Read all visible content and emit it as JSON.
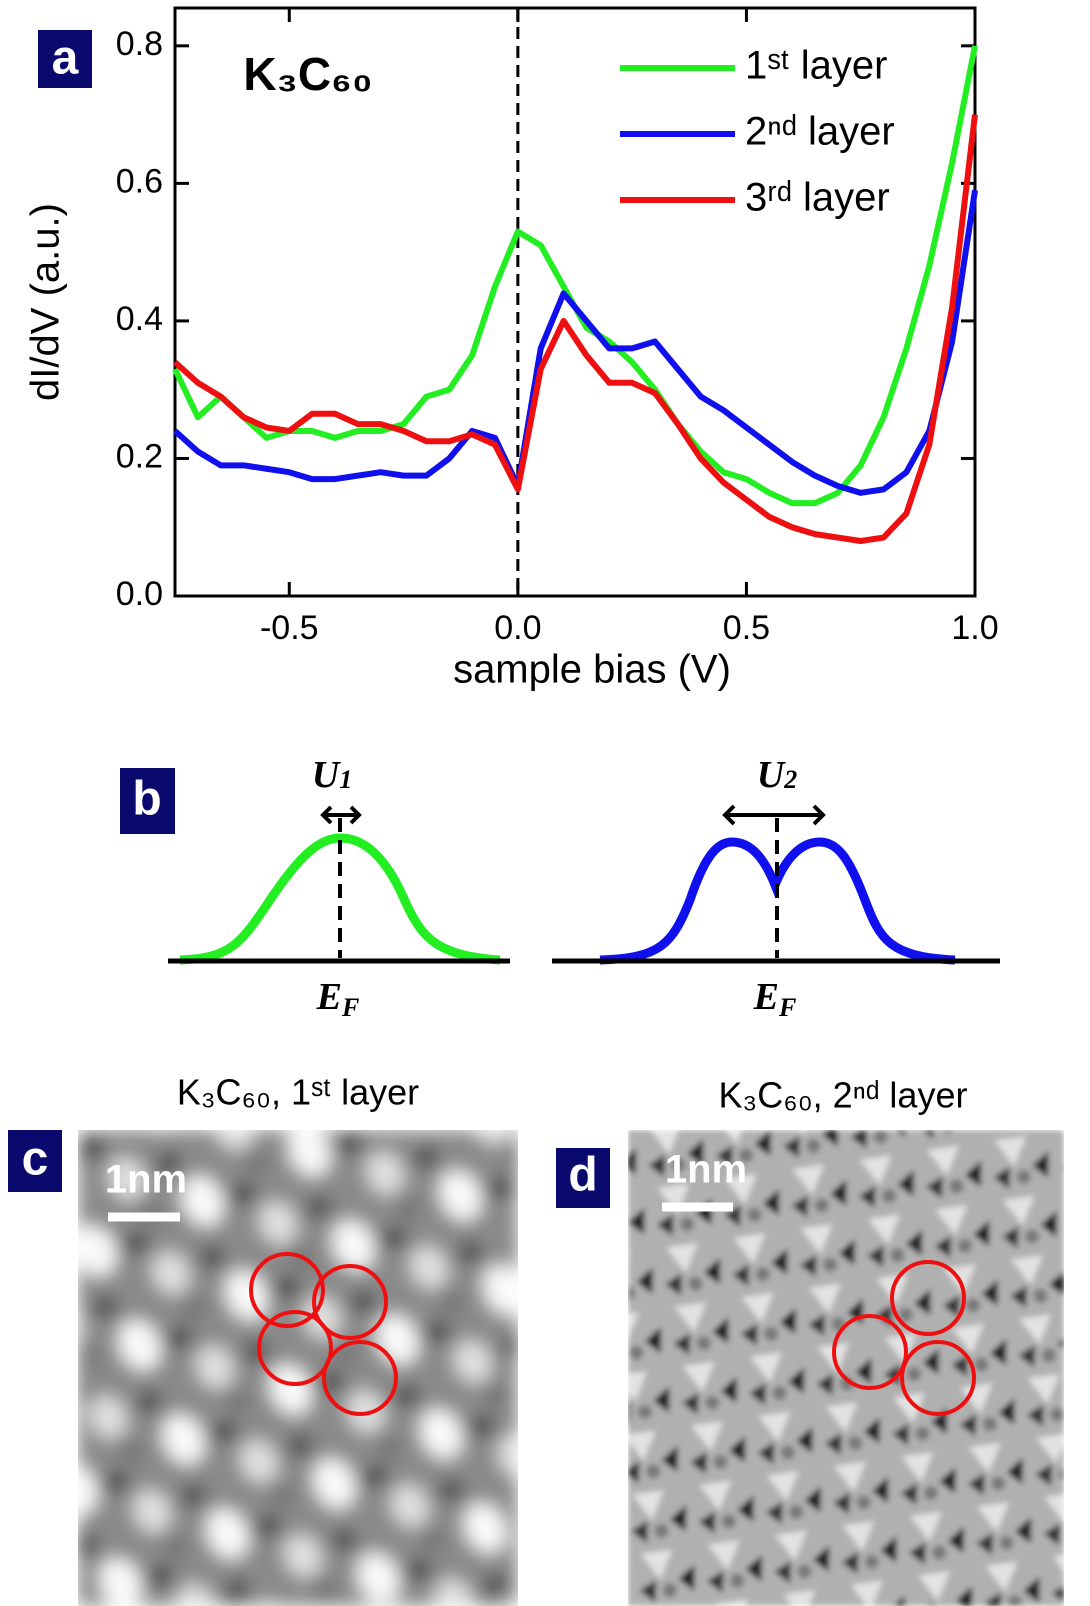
{
  "chart_data": {
    "type": "line",
    "title": "K₃C₆₀",
    "panel_label": "a",
    "xlabel": "sample bias (V)",
    "ylabel": "dI/dV (a.u.)",
    "xlim": [
      -0.75,
      1.0
    ],
    "ylim": [
      0,
      0.855
    ],
    "xticks": [
      -0.5,
      {
        "value": 0,
        "label": "0.0"
      },
      0.5,
      {
        "value": 1,
        "label": "1.0"
      }
    ],
    "yticks": [
      {
        "value": 0,
        "label": "0.0"
      },
      0.2,
      0.4,
      0.6,
      0.8
    ],
    "vline": 0,
    "legend": "upper right",
    "x": [
      -0.75,
      -0.7,
      -0.65,
      -0.6,
      -0.55,
      -0.5,
      -0.45,
      -0.4,
      -0.35,
      -0.3,
      -0.25,
      -0.2,
      -0.15,
      -0.1,
      -0.05,
      0,
      0.05,
      0.1,
      0.15,
      0.2,
      0.25,
      0.3,
      0.35,
      0.4,
      0.45,
      0.5,
      0.55,
      0.6,
      0.65,
      0.7,
      0.75,
      0.8,
      0.85,
      0.9,
      0.95,
      1.0
    ],
    "series": [
      {
        "name": "1ˢᵗ layer",
        "color": "#22ee22",
        "values": [
          0.33,
          0.26,
          0.29,
          0.26,
          0.23,
          0.24,
          0.24,
          0.23,
          0.24,
          0.24,
          0.25,
          0.29,
          0.3,
          0.35,
          0.45,
          0.53,
          0.51,
          0.45,
          0.39,
          0.37,
          0.34,
          0.3,
          0.25,
          0.21,
          0.18,
          0.17,
          0.15,
          0.135,
          0.135,
          0.15,
          0.19,
          0.26,
          0.36,
          0.48,
          0.63,
          0.8
        ]
      },
      {
        "name": "2ⁿᵈ layer",
        "color": "#1010ee",
        "values": [
          0.24,
          0.21,
          0.19,
          0.19,
          0.185,
          0.18,
          0.17,
          0.17,
          0.175,
          0.18,
          0.175,
          0.175,
          0.2,
          0.24,
          0.23,
          0.16,
          0.36,
          0.44,
          0.4,
          0.36,
          0.36,
          0.37,
          0.33,
          0.29,
          0.27,
          0.245,
          0.22,
          0.195,
          0.175,
          0.16,
          0.15,
          0.155,
          0.18,
          0.24,
          0.37,
          0.59
        ]
      },
      {
        "name": "3ʳᵈ layer",
        "color": "#ee1010",
        "values": [
          0.34,
          0.31,
          0.29,
          0.26,
          0.245,
          0.24,
          0.265,
          0.265,
          0.25,
          0.25,
          0.24,
          0.225,
          0.225,
          0.235,
          0.22,
          0.155,
          0.33,
          0.4,
          0.35,
          0.31,
          0.31,
          0.295,
          0.25,
          0.2,
          0.165,
          0.14,
          0.115,
          0.1,
          0.09,
          0.085,
          0.08,
          0.085,
          0.12,
          0.22,
          0.42,
          0.7
        ]
      }
    ]
  },
  "panel_b": {
    "label": "b",
    "left": {
      "gap": {
        "symbol": "U",
        "subscript": "1"
      },
      "level": {
        "symbol": "E",
        "subscript": "F"
      }
    },
    "right": {
      "gap": {
        "symbol": "U",
        "subscript": "2"
      },
      "level": {
        "symbol": "E",
        "subscript": "F"
      }
    }
  },
  "panel_c": {
    "label": "c",
    "title": "K₃C₆₀, 1ˢᵗ layer",
    "scale_bar": "1nm"
  },
  "panel_d": {
    "label": "d",
    "title": "K₃C₆₀, 2ⁿᵈ layer",
    "scale_bar": "1nm"
  }
}
